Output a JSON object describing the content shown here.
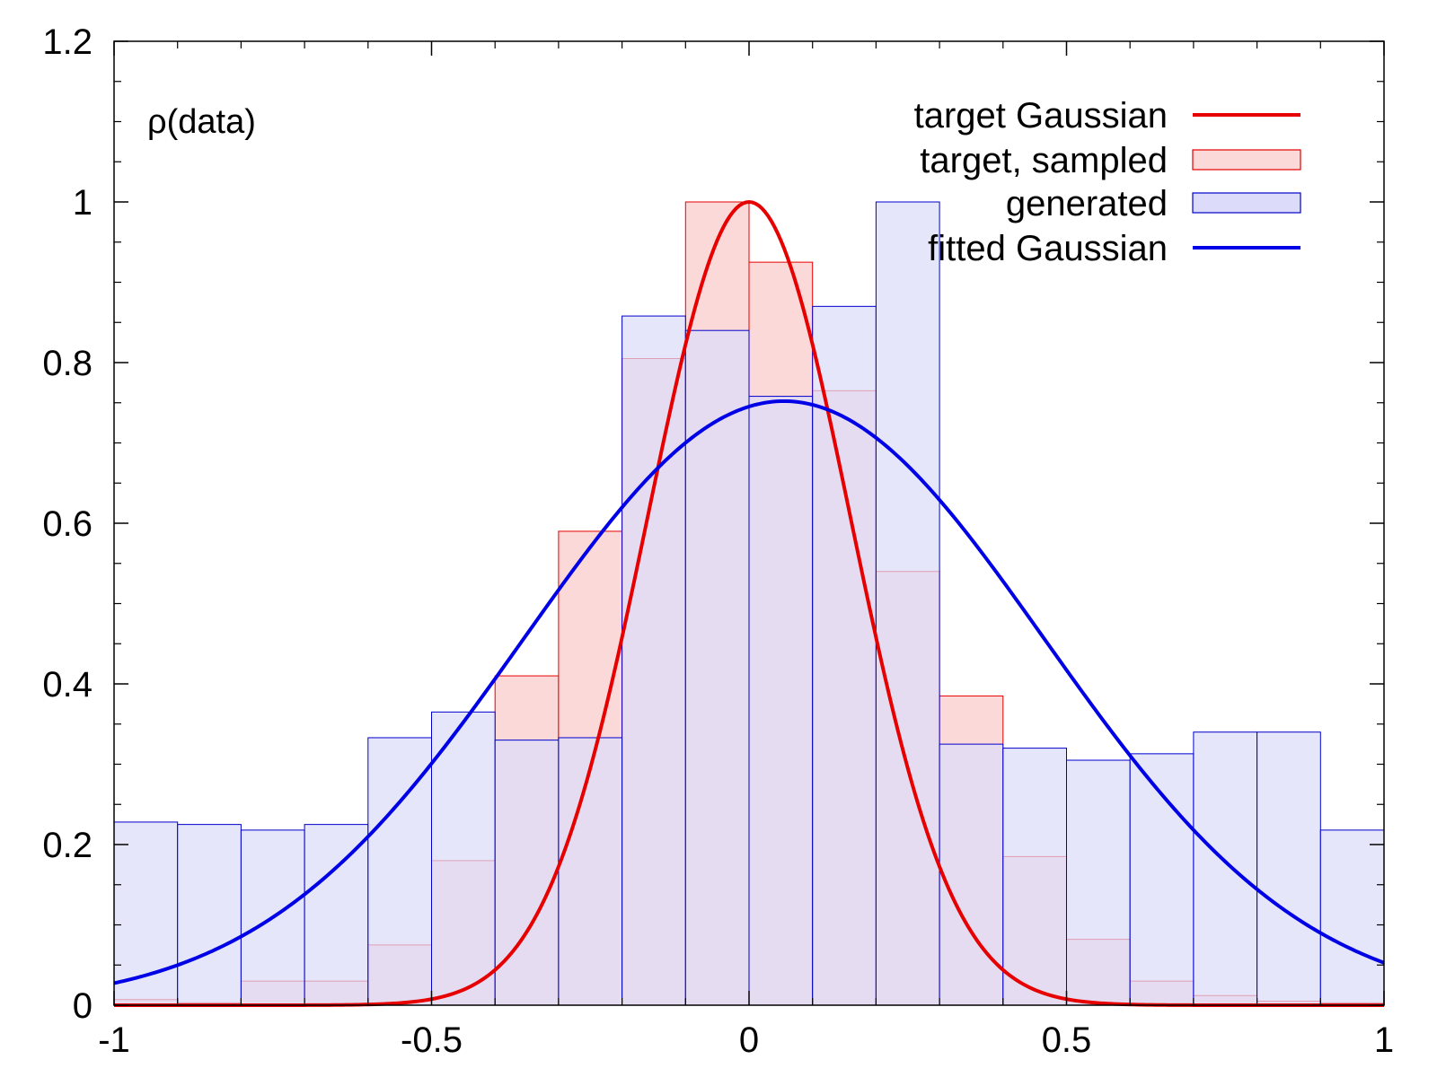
{
  "chart_data": {
    "type": "bar",
    "title": "",
    "xlabel": "",
    "ylabel": "ρ(data)",
    "xlim": [
      -1,
      1
    ],
    "ylim": [
      0,
      1.2
    ],
    "x_ticks": [
      -1,
      -0.5,
      0,
      0.5,
      1
    ],
    "x_tick_labels": [
      "-1",
      "-0.5",
      "0",
      "0.5",
      "1"
    ],
    "y_ticks": [
      0,
      0.2,
      0.4,
      0.6,
      0.8,
      1,
      1.2
    ],
    "y_tick_labels": [
      "0",
      "0.2",
      "0.4",
      "0.6",
      "0.8",
      "1",
      "1.2"
    ],
    "grid": false,
    "legend_position": "top-right",
    "bin_edges": [
      -1,
      -0.9,
      -0.8,
      -0.7,
      -0.6,
      -0.5,
      -0.4,
      -0.3,
      -0.2,
      -0.1,
      0,
      0.1,
      0.2,
      0.3,
      0.4,
      0.5,
      0.6,
      0.7,
      0.8,
      0.9,
      1
    ],
    "series": [
      {
        "name": "target Gaussian",
        "kind": "line",
        "color": "#e60000",
        "mu": 0,
        "sigma": 0.16,
        "amplitude": 1.0
      },
      {
        "name": "target, sampled",
        "kind": "histogram",
        "color": "#e60000",
        "fill": "#fcd9d9",
        "values": [
          0.007,
          0.003,
          0.03,
          0.03,
          0.075,
          0.18,
          0.41,
          0.59,
          0.805,
          1.0,
          0.925,
          0.765,
          0.54,
          0.385,
          0.185,
          0.082,
          0.03,
          0.012,
          0.005,
          0.003
        ]
      },
      {
        "name": "generated",
        "kind": "histogram",
        "color": "#0000cc",
        "fill": "#dcdcfa",
        "values": [
          0.228,
          0.225,
          0.218,
          0.225,
          0.333,
          0.365,
          0.33,
          0.333,
          0.858,
          0.84,
          0.758,
          0.87,
          1.0,
          0.325,
          0.32,
          0.305,
          0.313,
          0.34,
          0.34,
          0.218
        ]
      },
      {
        "name": "fitted Gaussian",
        "kind": "line",
        "color": "#0000e6",
        "mu": 0.055,
        "sigma": 0.41,
        "amplitude": 0.752
      }
    ]
  }
}
